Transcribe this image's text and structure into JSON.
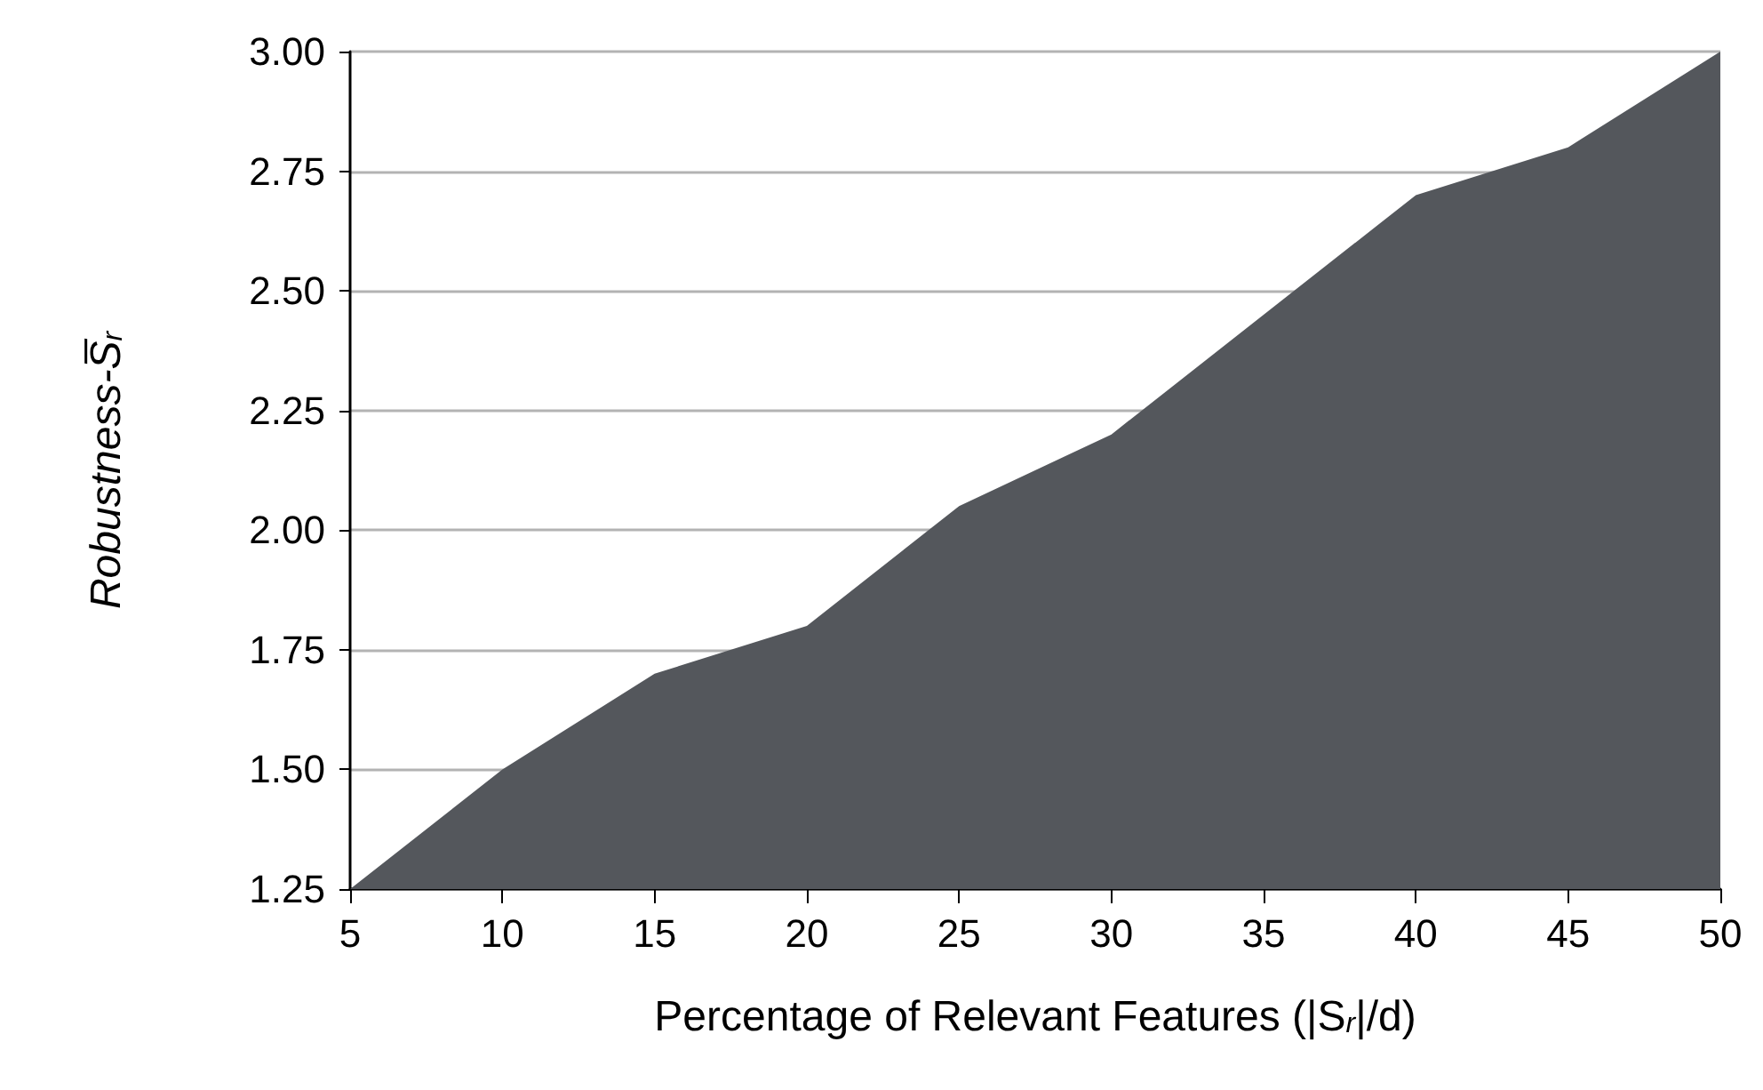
{
  "chart_data": {
    "type": "area",
    "xlabel": "Percentage of Relevant Features (|S$_{r}$|/d)",
    "ylabel": "Robustness-S̅$_{r}$",
    "x": [
      5,
      10,
      15,
      20,
      25,
      30,
      35,
      40,
      45,
      50
    ],
    "series": [
      {
        "color": "#54575c",
        "values": [
          1.25,
          1.5,
          1.7,
          1.8,
          2.05,
          2.2,
          2.45,
          2.7,
          2.8,
          3.0
        ]
      }
    ],
    "xlim": [
      5,
      50
    ],
    "xticks": [
      5,
      10,
      15,
      20,
      25,
      30,
      35,
      40,
      45,
      50
    ],
    "ylim": [
      1.25,
      3.0
    ],
    "yticks": [
      1.25,
      {
        "value": 1.5,
        "label": "1.50"
      },
      1.75,
      {
        "value": 2.0,
        "label": "2.00"
      },
      2.25,
      {
        "value": 2.5,
        "label": "2.50"
      },
      2.75,
      {
        "value": 3.0,
        "label": "3.00"
      }
    ],
    "grid": "y",
    "marker": "none"
  }
}
